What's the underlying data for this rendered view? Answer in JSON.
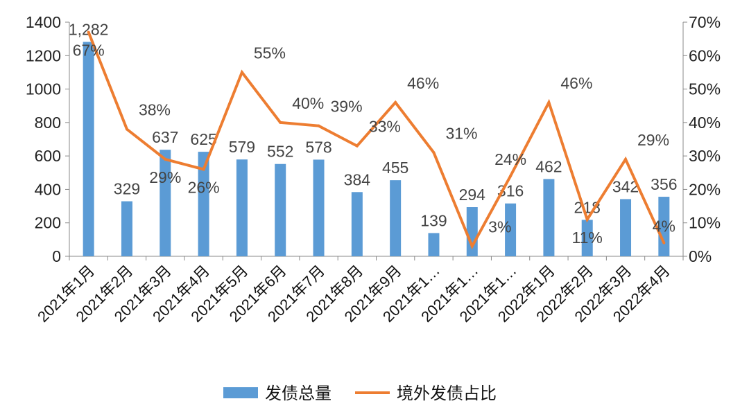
{
  "chart_data": {
    "type": "bar",
    "categories": [
      "2021年1月",
      "2021年2月",
      "2021年3月",
      "2021年4月",
      "2021年5月",
      "2021年6月",
      "2021年7月",
      "2021年8月",
      "2021年9月",
      "2021年1…",
      "2021年1…",
      "2021年1…",
      "2022年1月",
      "2022年2月",
      "2022年3月",
      "2022年4月"
    ],
    "series": [
      {
        "name": "发债总量",
        "type": "bar",
        "axis": "left",
        "color": "#5B9BD5",
        "values": [
          1282,
          329,
          637,
          625,
          579,
          552,
          578,
          384,
          455,
          139,
          294,
          316,
          462,
          218,
          342,
          356
        ],
        "labels": [
          "1,282",
          "329",
          "637",
          "625",
          "579",
          "552",
          "578",
          "384",
          "455",
          "139",
          "294",
          "316",
          "462",
          "218",
          "342",
          "356"
        ]
      },
      {
        "name": "境外发债占比",
        "type": "line",
        "axis": "right",
        "color": "#ED7D31",
        "values": [
          67,
          38,
          29,
          26,
          55,
          40,
          39,
          33,
          46,
          31,
          3,
          24,
          46,
          11,
          29,
          4
        ],
        "labels": [
          "67%",
          "38%",
          "29%",
          "26%",
          "55%",
          "40%",
          "39%",
          "33%",
          "46%",
          "31%",
          "3%",
          "24%",
          "46%",
          "11%",
          "29%",
          "4%"
        ]
      }
    ],
    "left_axis": {
      "ylim": [
        0,
        1400
      ],
      "ticks": [
        "0",
        "200",
        "400",
        "600",
        "800",
        "1000",
        "1200",
        "1400"
      ]
    },
    "right_axis": {
      "ylim": [
        0,
        70
      ],
      "ticks": [
        "0%",
        "10%",
        "20%",
        "30%",
        "40%",
        "50%",
        "60%",
        "70%"
      ]
    },
    "grid": false,
    "legend": "bottom"
  }
}
